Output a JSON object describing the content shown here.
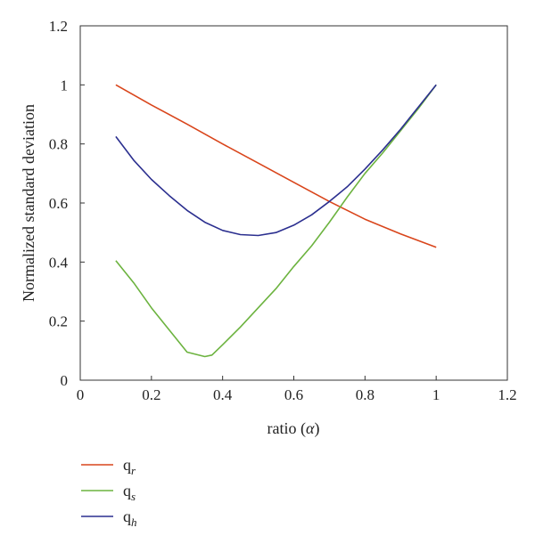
{
  "chart_data": {
    "type": "line",
    "title": "",
    "xlabel": "ratio (",
    "xlabel_symbol": "α",
    "xlabel_end": ")",
    "ylabel": "Normalized standard deviation",
    "xlim": [
      0,
      1.2
    ],
    "ylim": [
      0,
      1.2
    ],
    "xticks": [
      "0",
      "0.2",
      "0.4",
      "0.6",
      "0.8",
      "1",
      "1.2"
    ],
    "yticks": [
      "0",
      "0.2",
      "0.4",
      "0.6",
      "0.8",
      "1",
      "1.2"
    ],
    "grid": false,
    "legend_position": "bottom-left",
    "series": [
      {
        "name": "q",
        "subscript": "r",
        "color": "#d9451b",
        "x": [
          0.1,
          0.2,
          0.3,
          0.4,
          0.5,
          0.6,
          0.7,
          0.8,
          0.9,
          1.0
        ],
        "y": [
          1.0,
          0.932,
          0.867,
          0.8,
          0.735,
          0.67,
          0.605,
          0.545,
          0.495,
          0.45
        ]
      },
      {
        "name": "q",
        "subscript": "s",
        "color": "#6cb33f",
        "x": [
          0.1,
          0.15,
          0.2,
          0.25,
          0.3,
          0.35,
          0.37,
          0.4,
          0.45,
          0.5,
          0.55,
          0.6,
          0.65,
          0.7,
          0.75,
          0.8,
          0.85,
          0.9,
          0.95,
          1.0
        ],
        "y": [
          0.405,
          0.33,
          0.245,
          0.17,
          0.095,
          0.08,
          0.085,
          0.12,
          0.18,
          0.245,
          0.31,
          0.385,
          0.455,
          0.535,
          0.62,
          0.7,
          0.77,
          0.845,
          0.92,
          1.0
        ]
      },
      {
        "name": "q",
        "subscript": "h",
        "color": "#2b2f8f",
        "x": [
          0.1,
          0.15,
          0.2,
          0.25,
          0.3,
          0.35,
          0.4,
          0.45,
          0.5,
          0.55,
          0.6,
          0.65,
          0.7,
          0.75,
          0.8,
          0.85,
          0.9,
          0.95,
          1.0
        ],
        "y": [
          0.825,
          0.745,
          0.68,
          0.625,
          0.575,
          0.535,
          0.507,
          0.493,
          0.49,
          0.5,
          0.525,
          0.56,
          0.605,
          0.655,
          0.715,
          0.78,
          0.85,
          0.925,
          1.0
        ]
      }
    ]
  }
}
